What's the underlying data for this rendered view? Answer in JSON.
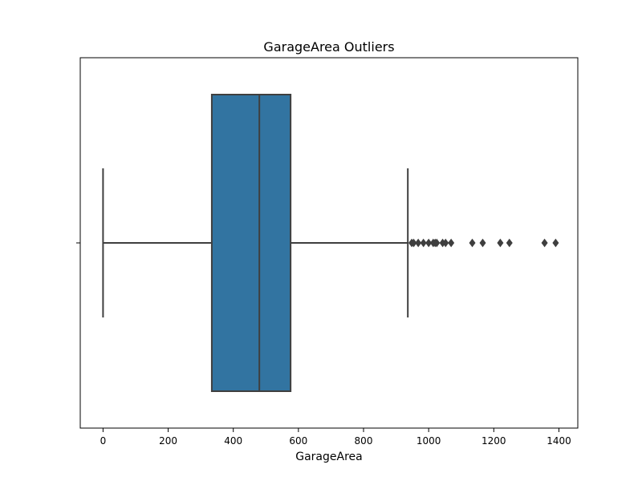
{
  "chart_data": {
    "type": "box",
    "title": "GarageArea Outliers",
    "xlabel": "GarageArea",
    "ylabel": "",
    "xlim": [
      -70,
      1458
    ],
    "xticks": [
      0,
      200,
      400,
      600,
      800,
      1000,
      1200,
      1400
    ],
    "orientation": "horizontal",
    "grid": false,
    "box": {
      "min": 0,
      "q1": 334,
      "median": 480,
      "q3": 576,
      "max": 936
    },
    "outliers": [
      948,
      954,
      968,
      984,
      1000,
      1014,
      1020,
      1025,
      1043,
      1052,
      1069,
      1134,
      1166,
      1220,
      1248,
      1356,
      1390
    ],
    "colors": {
      "box_fill": "#3274a1",
      "lines": "#3f3f3f",
      "axes": "#000000",
      "background": "#ffffff"
    }
  }
}
